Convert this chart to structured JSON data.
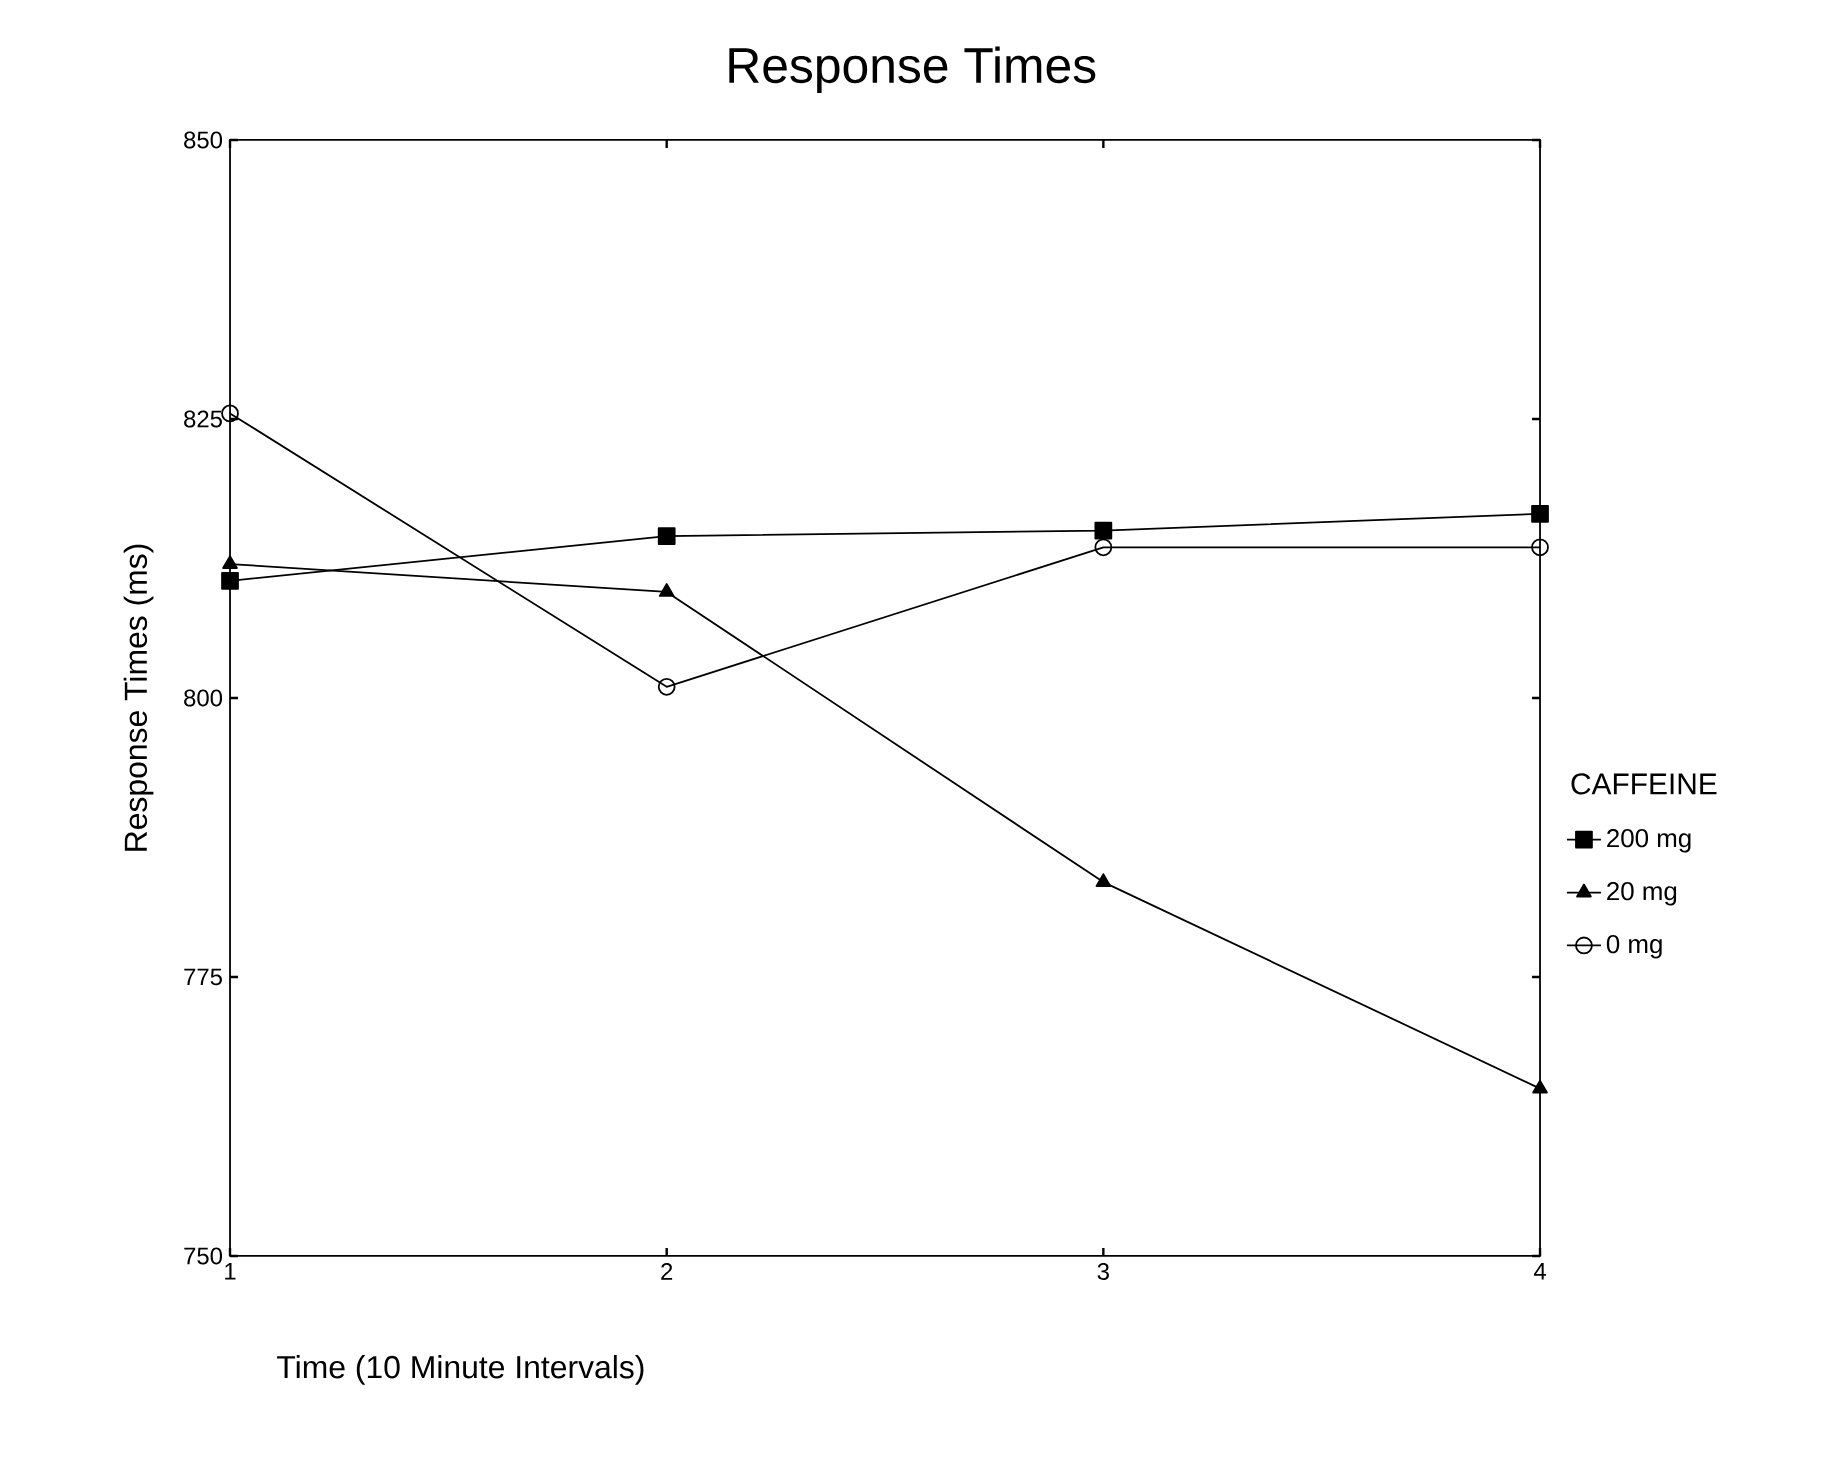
{
  "chart_data": {
    "type": "line",
    "title": "Response Times",
    "xlabel": "Time (10 Minute Intervals)",
    "ylabel": "Response Times (ms)",
    "legend_title": "CAFFEINE",
    "x": [
      1,
      2,
      3,
      4
    ],
    "xlim": [
      1,
      4
    ],
    "xticks": [
      1,
      2,
      3,
      4
    ],
    "ylim": [
      750,
      850
    ],
    "yticks": [
      750,
      775,
      800,
      825,
      850
    ],
    "grid": false,
    "legend": "right",
    "line_style": "solid",
    "series": [
      {
        "name": "200 mg",
        "color": "#000000",
        "marker": "square",
        "values": [
          810.5,
          814.5,
          815,
          816.5
        ]
      },
      {
        "name": "20 mg",
        "color": "#000000",
        "marker": "triangle",
        "values": [
          812,
          809.5,
          783.5,
          765
        ]
      },
      {
        "name": "0 mg",
        "color": "#000000",
        "marker": "circle",
        "values": [
          825.5,
          801,
          813.5,
          813.5
        ]
      }
    ]
  }
}
